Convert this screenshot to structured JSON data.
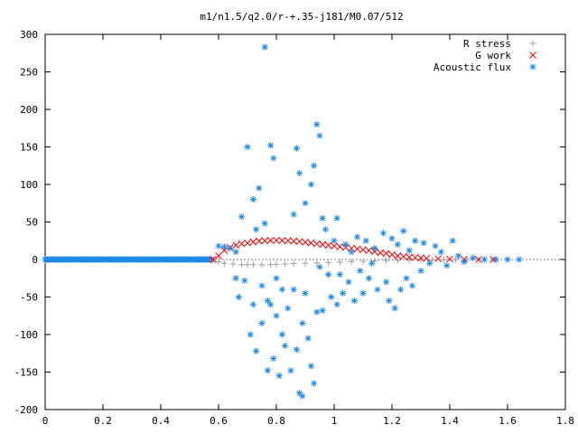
{
  "chart_data": {
    "type": "scatter",
    "title": "m1/n1.5/q2.0/r-+.35-j181/M0.07/512",
    "xlabel": "",
    "ylabel": "",
    "xlim": [
      0,
      1.8
    ],
    "ylim": [
      -200,
      300
    ],
    "x_ticks": [
      "0",
      "0.2",
      "0.4",
      "0.6",
      "0.8",
      "1",
      "1.2",
      "1.4",
      "1.6",
      "1.8"
    ],
    "y_ticks": [
      "300",
      "250",
      "200",
      "150",
      "100",
      "50",
      "0",
      "-50",
      "-100",
      "-150",
      "-200"
    ],
    "legend_position": "top-right",
    "grid": false,
    "series": [
      {
        "name": "R stress",
        "marker": "plus",
        "color": "#a0a0a0",
        "points": [
          [
            0.58,
            -1
          ],
          [
            0.6,
            -3
          ],
          [
            0.62,
            -5
          ],
          [
            0.65,
            -6
          ],
          [
            0.68,
            -7
          ],
          [
            0.7,
            -7
          ],
          [
            0.72,
            -7
          ],
          [
            0.75,
            -7
          ],
          [
            0.78,
            -7
          ],
          [
            0.8,
            -6.5
          ],
          [
            0.83,
            -6
          ],
          [
            0.86,
            -5.5
          ],
          [
            0.9,
            -5
          ],
          [
            0.94,
            -4.5
          ],
          [
            0.98,
            -4
          ],
          [
            1.02,
            -3.5
          ],
          [
            1.06,
            -3
          ],
          [
            1.1,
            -2.5
          ],
          [
            1.14,
            -2
          ],
          [
            1.18,
            -1.5
          ],
          [
            1.22,
            -1.2
          ],
          [
            1.26,
            -1
          ],
          [
            1.3,
            -0.8
          ],
          [
            1.34,
            -0.6
          ],
          [
            1.38,
            -0.4
          ],
          [
            1.42,
            -0.3
          ],
          [
            1.46,
            -0.2
          ],
          [
            1.5,
            -0.1
          ],
          [
            1.55,
            0
          ]
        ]
      },
      {
        "name": "G work",
        "marker": "cross",
        "color": "#ff0000",
        "points": [
          [
            0.58,
            0
          ],
          [
            0.6,
            5
          ],
          [
            0.62,
            12
          ],
          [
            0.64,
            16
          ],
          [
            0.66,
            19
          ],
          [
            0.68,
            21
          ],
          [
            0.7,
            22
          ],
          [
            0.72,
            23.5
          ],
          [
            0.74,
            24.5
          ],
          [
            0.76,
            25
          ],
          [
            0.78,
            25.5
          ],
          [
            0.8,
            25.5
          ],
          [
            0.82,
            25.5
          ],
          [
            0.84,
            25
          ],
          [
            0.86,
            24.5
          ],
          [
            0.88,
            24
          ],
          [
            0.9,
            23
          ],
          [
            0.92,
            22
          ],
          [
            0.94,
            21
          ],
          [
            0.96,
            20
          ],
          [
            0.98,
            19
          ],
          [
            1.0,
            18
          ],
          [
            1.02,
            17
          ],
          [
            1.04,
            16
          ],
          [
            1.06,
            15
          ],
          [
            1.08,
            14
          ],
          [
            1.1,
            13
          ],
          [
            1.12,
            12
          ],
          [
            1.14,
            10.5
          ],
          [
            1.16,
            9
          ],
          [
            1.18,
            8
          ],
          [
            1.2,
            6.5
          ],
          [
            1.22,
            5
          ],
          [
            1.24,
            4
          ],
          [
            1.26,
            3
          ],
          [
            1.28,
            2.5
          ],
          [
            1.3,
            2
          ],
          [
            1.32,
            1.5
          ],
          [
            1.36,
            1
          ],
          [
            1.4,
            0.5
          ],
          [
            1.45,
            0.3
          ],
          [
            1.5,
            0.1
          ],
          [
            1.55,
            0
          ]
        ]
      },
      {
        "name": "Acoustic flux",
        "marker": "star",
        "color": "#1e88e5",
        "points": [
          [
            0.6,
            18
          ],
          [
            0.62,
            17
          ],
          [
            0.64,
            15
          ],
          [
            0.66,
            10
          ],
          [
            0.66,
            -25
          ],
          [
            0.67,
            -50
          ],
          [
            0.68,
            57
          ],
          [
            0.69,
            -28
          ],
          [
            0.7,
            150
          ],
          [
            0.71,
            -100
          ],
          [
            0.72,
            80
          ],
          [
            0.72,
            -60
          ],
          [
            0.73,
            -122
          ],
          [
            0.73,
            40
          ],
          [
            0.74,
            95
          ],
          [
            0.75,
            -35
          ],
          [
            0.75,
            -85
          ],
          [
            0.76,
            283
          ],
          [
            0.76,
            48
          ],
          [
            0.77,
            -55
          ],
          [
            0.77,
            -148
          ],
          [
            0.78,
            152
          ],
          [
            0.78,
            -60
          ],
          [
            0.79,
            135
          ],
          [
            0.79,
            -132
          ],
          [
            0.8,
            -75
          ],
          [
            0.8,
            -25
          ],
          [
            0.81,
            -155
          ],
          [
            0.82,
            -100
          ],
          [
            0.82,
            -40
          ],
          [
            0.83,
            -115
          ],
          [
            0.84,
            -65
          ],
          [
            0.85,
            -148
          ],
          [
            0.86,
            -40
          ],
          [
            0.86,
            60
          ],
          [
            0.87,
            148
          ],
          [
            0.87,
            -120
          ],
          [
            0.88,
            115
          ],
          [
            0.88,
            -178
          ],
          [
            0.89,
            -182
          ],
          [
            0.89,
            -85
          ],
          [
            0.9,
            -45
          ],
          [
            0.9,
            75
          ],
          [
            0.91,
            -105
          ],
          [
            0.92,
            -142
          ],
          [
            0.92,
            100
          ],
          [
            0.93,
            -165
          ],
          [
            0.93,
            125
          ],
          [
            0.94,
            180
          ],
          [
            0.94,
            -70
          ],
          [
            0.95,
            -10
          ],
          [
            0.95,
            165
          ],
          [
            0.96,
            55
          ],
          [
            0.96,
            -68
          ],
          [
            0.97,
            40
          ],
          [
            0.98,
            -20
          ],
          [
            0.99,
            -50
          ],
          [
            1.0,
            25
          ],
          [
            1.01,
            55
          ],
          [
            1.01,
            -60
          ],
          [
            1.02,
            -20
          ],
          [
            1.03,
            -45
          ],
          [
            1.04,
            20
          ],
          [
            1.05,
            -30
          ],
          [
            1.06,
            10
          ],
          [
            1.07,
            -55
          ],
          [
            1.08,
            30
          ],
          [
            1.09,
            -15
          ],
          [
            1.1,
            -45
          ],
          [
            1.11,
            25
          ],
          [
            1.12,
            -25
          ],
          [
            1.13,
            -5
          ],
          [
            1.14,
            15
          ],
          [
            1.15,
            -40
          ],
          [
            1.17,
            35
          ],
          [
            1.18,
            -30
          ],
          [
            1.19,
            -55
          ],
          [
            1.2,
            28
          ],
          [
            1.21,
            -65
          ],
          [
            1.22,
            20
          ],
          [
            1.23,
            -40
          ],
          [
            1.24,
            38
          ],
          [
            1.25,
            -25
          ],
          [
            1.26,
            12
          ],
          [
            1.27,
            -35
          ],
          [
            1.28,
            25
          ],
          [
            1.3,
            -15
          ],
          [
            1.31,
            22
          ],
          [
            1.33,
            -5
          ],
          [
            1.35,
            18
          ],
          [
            1.37,
            10
          ],
          [
            1.39,
            -8
          ],
          [
            1.41,
            25
          ],
          [
            1.43,
            5
          ],
          [
            1.45,
            -3
          ],
          [
            1.48,
            2
          ],
          [
            1.52,
            0
          ],
          [
            1.56,
            0
          ],
          [
            1.6,
            0
          ],
          [
            1.64,
            0
          ]
        ]
      }
    ]
  }
}
